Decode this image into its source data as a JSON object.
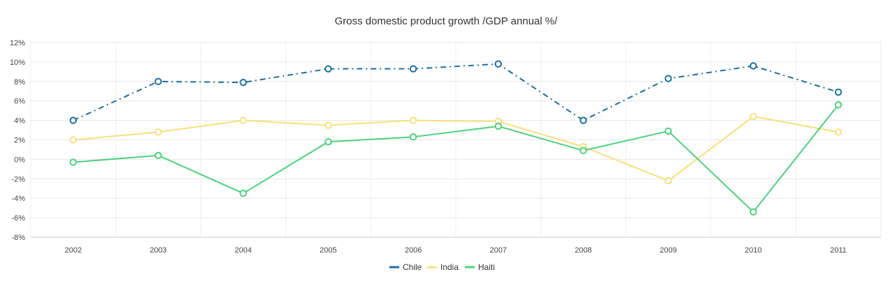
{
  "chart_data": {
    "type": "line",
    "title": "Gross domestic product growth /GDP annual %/",
    "xlabel": "",
    "ylabel": "",
    "categories": [
      "2002",
      "2003",
      "2004",
      "2005",
      "2006",
      "2007",
      "2008",
      "2009",
      "2010",
      "2011"
    ],
    "ylim": [
      -8,
      12
    ],
    "ytick_step": 2,
    "ytick_labels": [
      "12%",
      "10%",
      "8%",
      "6%",
      "4%",
      "2%",
      "0%",
      "-2%",
      "-4%",
      "-6%",
      "-8%"
    ],
    "grid": true,
    "legend_position": "bottom-center",
    "series": [
      {
        "name": "Chile",
        "color": "#1a6fa0",
        "dash": "dash-dot",
        "values": [
          4.0,
          8.0,
          7.9,
          9.3,
          9.3,
          9.8,
          4.0,
          8.3,
          9.6,
          6.9
        ]
      },
      {
        "name": "India",
        "color": "#f7e07a",
        "dash": "solid",
        "values": [
          2.0,
          2.8,
          4.0,
          3.5,
          4.0,
          3.9,
          1.3,
          -2.2,
          4.4,
          2.8
        ]
      },
      {
        "name": "Haiti",
        "color": "#4cd17e",
        "dash": "solid",
        "values": [
          -0.3,
          0.4,
          -3.5,
          1.8,
          2.3,
          3.4,
          0.9,
          2.9,
          -5.4,
          5.6
        ]
      }
    ]
  }
}
